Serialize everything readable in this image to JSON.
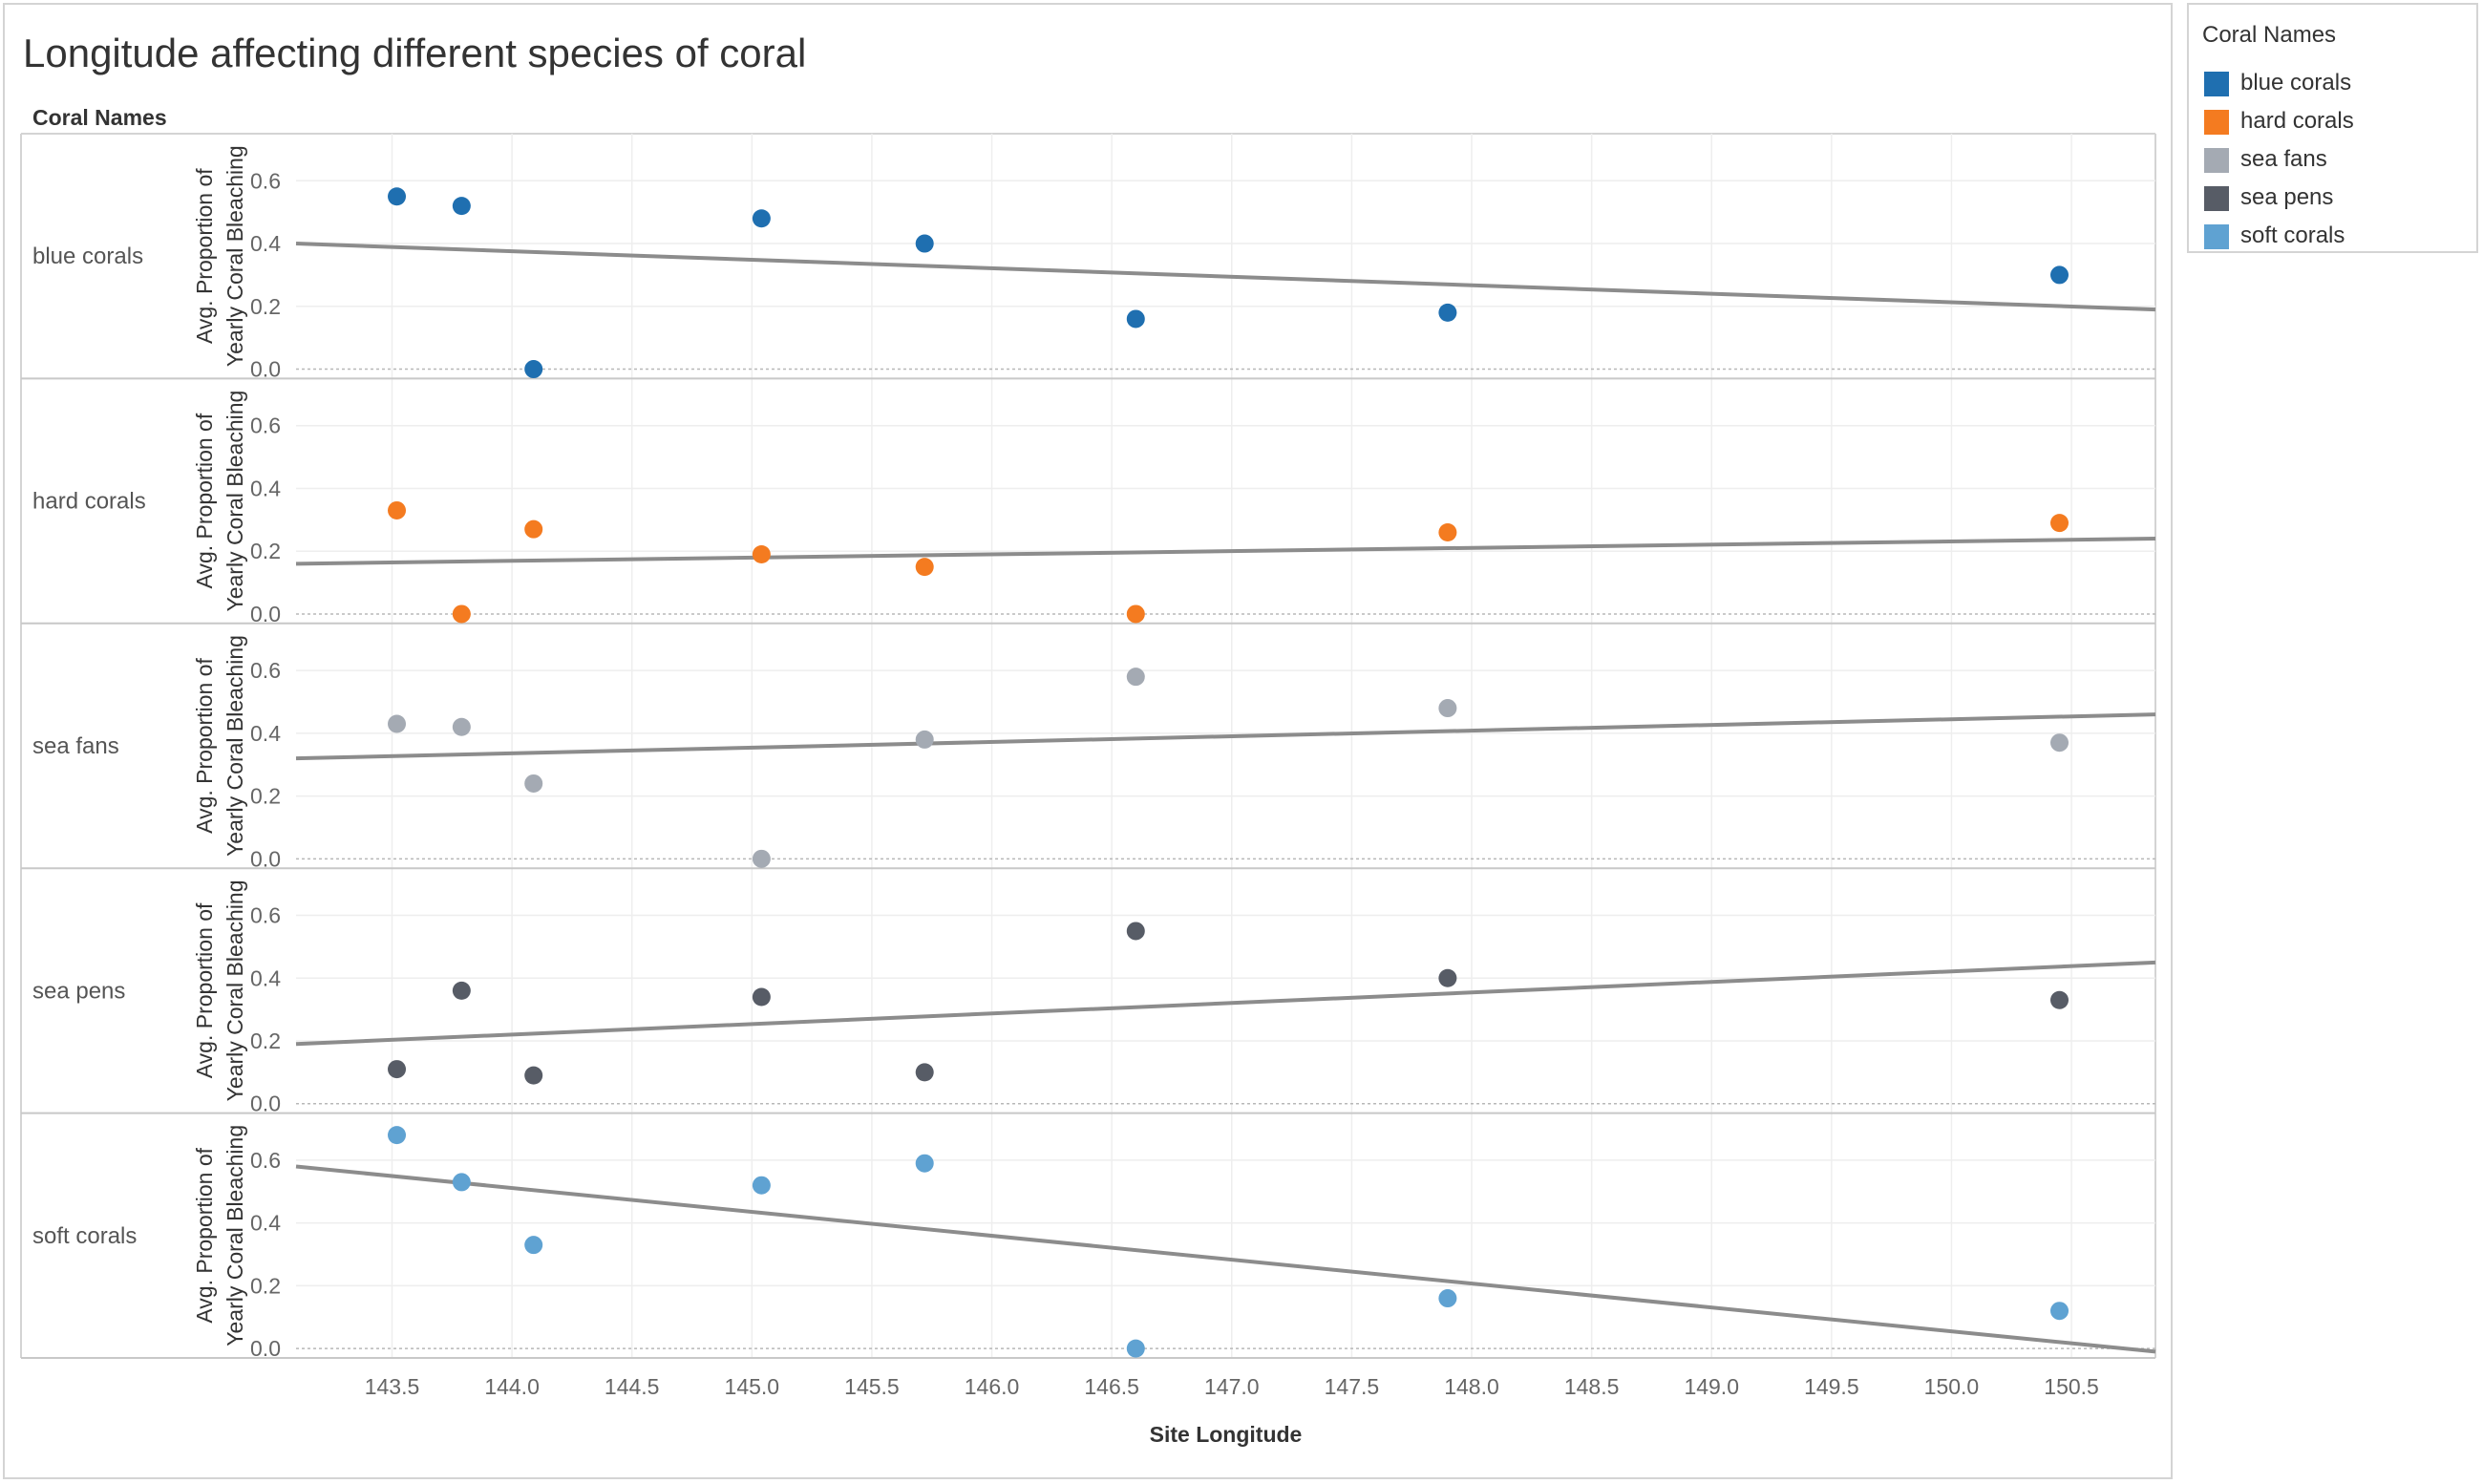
{
  "chart_data": {
    "type": "scatter",
    "title": "Longitude affecting different species of coral",
    "row_header": "Coral Names",
    "xlabel": "Site Longitude",
    "ylabel": "Avg. Proportion of Yearly Coral Bleaching",
    "ylabel_lines": [
      "Avg. Proportion of",
      "Yearly Coral Bleaching"
    ],
    "xlim": [
      143.1,
      150.85
    ],
    "ylim": [
      -0.03,
      0.75
    ],
    "x_ticks": [
      "143.5",
      "144.0",
      "144.5",
      "145.0",
      "145.5",
      "146.0",
      "146.5",
      "147.0",
      "147.5",
      "148.0",
      "148.5",
      "149.0",
      "149.5",
      "150.0",
      "150.5"
    ],
    "y_ticks": [
      "0.0",
      "0.2",
      "0.4",
      "0.6"
    ],
    "trend_lines": true,
    "grid": true,
    "legend": {
      "title": "Coral Names",
      "position": "right"
    },
    "series": [
      {
        "name": "blue corals",
        "color": "#1f6fb0",
        "points": [
          [
            143.52,
            0.55
          ],
          [
            143.79,
            0.52
          ],
          [
            144.09,
            0.0
          ],
          [
            145.04,
            0.48
          ],
          [
            145.72,
            0.4
          ],
          [
            146.6,
            0.16
          ],
          [
            147.9,
            0.18
          ],
          [
            150.45,
            0.3
          ]
        ],
        "trend": [
          [
            143.1,
            0.4
          ],
          [
            150.85,
            0.19
          ]
        ]
      },
      {
        "name": "hard corals",
        "color": "#f47b20",
        "points": [
          [
            143.52,
            0.33
          ],
          [
            143.79,
            0.0
          ],
          [
            144.09,
            0.27
          ],
          [
            145.04,
            0.19
          ],
          [
            145.72,
            0.15
          ],
          [
            146.6,
            0.0
          ],
          [
            147.9,
            0.26
          ],
          [
            150.45,
            0.29
          ]
        ],
        "trend": [
          [
            143.1,
            0.16
          ],
          [
            150.85,
            0.24
          ]
        ]
      },
      {
        "name": "sea fans",
        "color": "#a4aab3",
        "points": [
          [
            143.52,
            0.43
          ],
          [
            143.79,
            0.42
          ],
          [
            144.09,
            0.24
          ],
          [
            145.04,
            0.0
          ],
          [
            145.72,
            0.38
          ],
          [
            146.6,
            0.58
          ],
          [
            147.9,
            0.48
          ],
          [
            150.45,
            0.37
          ]
        ],
        "trend": [
          [
            143.1,
            0.32
          ],
          [
            150.85,
            0.46
          ]
        ]
      },
      {
        "name": "sea pens",
        "color": "#575c66",
        "points": [
          [
            143.52,
            0.11
          ],
          [
            143.79,
            0.36
          ],
          [
            144.09,
            0.09
          ],
          [
            145.04,
            0.34
          ],
          [
            145.72,
            0.1
          ],
          [
            146.6,
            0.55
          ],
          [
            147.9,
            0.4
          ],
          [
            150.45,
            0.33
          ]
        ],
        "trend": [
          [
            143.1,
            0.19
          ],
          [
            150.85,
            0.45
          ]
        ]
      },
      {
        "name": "soft corals",
        "color": "#5fa2d2",
        "points": [
          [
            143.52,
            0.68
          ],
          [
            143.79,
            0.53
          ],
          [
            144.09,
            0.33
          ],
          [
            145.04,
            0.52
          ],
          [
            145.72,
            0.59
          ],
          [
            146.6,
            0.0
          ],
          [
            147.9,
            0.16
          ],
          [
            150.45,
            0.12
          ]
        ],
        "trend": [
          [
            143.1,
            0.58
          ],
          [
            150.85,
            -0.01
          ]
        ]
      }
    ]
  }
}
